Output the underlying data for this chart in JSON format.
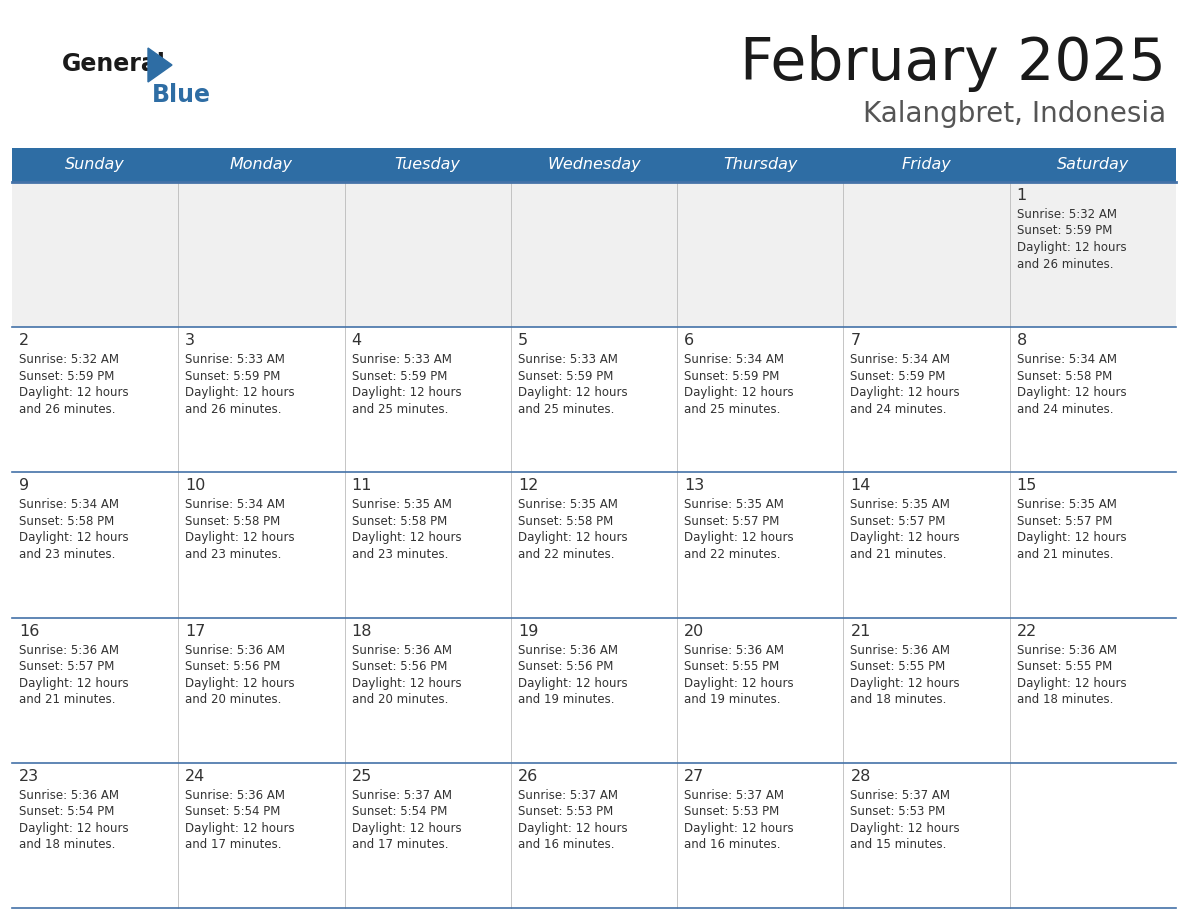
{
  "title": "February 2025",
  "subtitle": "Kalangbret, Indonesia",
  "header_bg": "#2E6DA4",
  "header_text_color": "#FFFFFF",
  "cell_bg_white": "#FFFFFF",
  "cell_bg_gray": "#F0F0F0",
  "day_names": [
    "Sunday",
    "Monday",
    "Tuesday",
    "Wednesday",
    "Thursday",
    "Friday",
    "Saturday"
  ],
  "border_color": "#2E6DA4",
  "text_color": "#333333",
  "line_color": "#4472A8",
  "days_data": [
    {
      "day": 1,
      "col": 6,
      "row": 0,
      "sunrise": "5:32 AM",
      "sunset": "5:59 PM",
      "minutes": "26"
    },
    {
      "day": 2,
      "col": 0,
      "row": 1,
      "sunrise": "5:32 AM",
      "sunset": "5:59 PM",
      "minutes": "26"
    },
    {
      "day": 3,
      "col": 1,
      "row": 1,
      "sunrise": "5:33 AM",
      "sunset": "5:59 PM",
      "minutes": "26"
    },
    {
      "day": 4,
      "col": 2,
      "row": 1,
      "sunrise": "5:33 AM",
      "sunset": "5:59 PM",
      "minutes": "25"
    },
    {
      "day": 5,
      "col": 3,
      "row": 1,
      "sunrise": "5:33 AM",
      "sunset": "5:59 PM",
      "minutes": "25"
    },
    {
      "day": 6,
      "col": 4,
      "row": 1,
      "sunrise": "5:34 AM",
      "sunset": "5:59 PM",
      "minutes": "25"
    },
    {
      "day": 7,
      "col": 5,
      "row": 1,
      "sunrise": "5:34 AM",
      "sunset": "5:59 PM",
      "minutes": "24"
    },
    {
      "day": 8,
      "col": 6,
      "row": 1,
      "sunrise": "5:34 AM",
      "sunset": "5:58 PM",
      "minutes": "24"
    },
    {
      "day": 9,
      "col": 0,
      "row": 2,
      "sunrise": "5:34 AM",
      "sunset": "5:58 PM",
      "minutes": "23"
    },
    {
      "day": 10,
      "col": 1,
      "row": 2,
      "sunrise": "5:34 AM",
      "sunset": "5:58 PM",
      "minutes": "23"
    },
    {
      "day": 11,
      "col": 2,
      "row": 2,
      "sunrise": "5:35 AM",
      "sunset": "5:58 PM",
      "minutes": "23"
    },
    {
      "day": 12,
      "col": 3,
      "row": 2,
      "sunrise": "5:35 AM",
      "sunset": "5:58 PM",
      "minutes": "22"
    },
    {
      "day": 13,
      "col": 4,
      "row": 2,
      "sunrise": "5:35 AM",
      "sunset": "5:57 PM",
      "minutes": "22"
    },
    {
      "day": 14,
      "col": 5,
      "row": 2,
      "sunrise": "5:35 AM",
      "sunset": "5:57 PM",
      "minutes": "21"
    },
    {
      "day": 15,
      "col": 6,
      "row": 2,
      "sunrise": "5:35 AM",
      "sunset": "5:57 PM",
      "minutes": "21"
    },
    {
      "day": 16,
      "col": 0,
      "row": 3,
      "sunrise": "5:36 AM",
      "sunset": "5:57 PM",
      "minutes": "21"
    },
    {
      "day": 17,
      "col": 1,
      "row": 3,
      "sunrise": "5:36 AM",
      "sunset": "5:56 PM",
      "minutes": "20"
    },
    {
      "day": 18,
      "col": 2,
      "row": 3,
      "sunrise": "5:36 AM",
      "sunset": "5:56 PM",
      "minutes": "20"
    },
    {
      "day": 19,
      "col": 3,
      "row": 3,
      "sunrise": "5:36 AM",
      "sunset": "5:56 PM",
      "minutes": "19"
    },
    {
      "day": 20,
      "col": 4,
      "row": 3,
      "sunrise": "5:36 AM",
      "sunset": "5:55 PM",
      "minutes": "19"
    },
    {
      "day": 21,
      "col": 5,
      "row": 3,
      "sunrise": "5:36 AM",
      "sunset": "5:55 PM",
      "minutes": "18"
    },
    {
      "day": 22,
      "col": 6,
      "row": 3,
      "sunrise": "5:36 AM",
      "sunset": "5:55 PM",
      "minutes": "18"
    },
    {
      "day": 23,
      "col": 0,
      "row": 4,
      "sunrise": "5:36 AM",
      "sunset": "5:54 PM",
      "minutes": "18"
    },
    {
      "day": 24,
      "col": 1,
      "row": 4,
      "sunrise": "5:36 AM",
      "sunset": "5:54 PM",
      "minutes": "17"
    },
    {
      "day": 25,
      "col": 2,
      "row": 4,
      "sunrise": "5:37 AM",
      "sunset": "5:54 PM",
      "minutes": "17"
    },
    {
      "day": 26,
      "col": 3,
      "row": 4,
      "sunrise": "5:37 AM",
      "sunset": "5:53 PM",
      "minutes": "16"
    },
    {
      "day": 27,
      "col": 4,
      "row": 4,
      "sunrise": "5:37 AM",
      "sunset": "5:53 PM",
      "minutes": "16"
    },
    {
      "day": 28,
      "col": 5,
      "row": 4,
      "sunrise": "5:37 AM",
      "sunset": "5:53 PM",
      "minutes": "15"
    }
  ]
}
